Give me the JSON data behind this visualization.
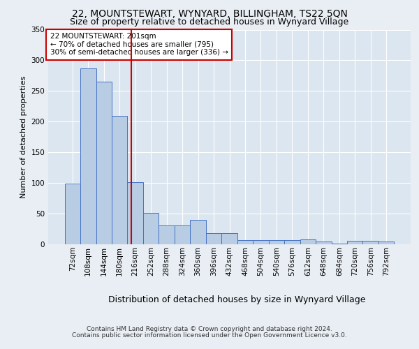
{
  "title": "22, MOUNTSTEWART, WYNYARD, BILLINGHAM, TS22 5QN",
  "subtitle": "Size of property relative to detached houses in Wynyard Village",
  "xlabel": "Distribution of detached houses by size in Wynyard Village",
  "ylabel": "Number of detached properties",
  "footer_line1": "Contains HM Land Registry data © Crown copyright and database right 2024.",
  "footer_line2": "Contains public sector information licensed under the Open Government Licence v3.0.",
  "bin_labels": [
    "72sqm",
    "108sqm",
    "144sqm",
    "180sqm",
    "216sqm",
    "252sqm",
    "288sqm",
    "324sqm",
    "360sqm",
    "396sqm",
    "432sqm",
    "468sqm",
    "504sqm",
    "540sqm",
    "576sqm",
    "612sqm",
    "648sqm",
    "684sqm",
    "720sqm",
    "756sqm",
    "792sqm"
  ],
  "bar_values": [
    99,
    287,
    265,
    210,
    101,
    51,
    31,
    31,
    40,
    18,
    18,
    7,
    7,
    7,
    7,
    8,
    4,
    1,
    6,
    6,
    4
  ],
  "bar_color": "#b8cce4",
  "bar_edge_color": "#4472c4",
  "annotation_line1": "22 MOUNTSTEWART: 201sqm",
  "annotation_line2": "← 70% of detached houses are smaller (795)",
  "annotation_line3": "30% of semi-detached houses are larger (336) →",
  "red_line_bin_index": 3.75,
  "red_line_color": "#cc0000",
  "background_color": "#e8eef4",
  "plot_bg_color": "#dce6f0",
  "grid_color": "#ffffff",
  "title_fontsize": 10,
  "subtitle_fontsize": 9,
  "ylabel_fontsize": 8,
  "xlabel_fontsize": 9,
  "tick_fontsize": 7.5,
  "ylim": [
    0,
    350
  ]
}
